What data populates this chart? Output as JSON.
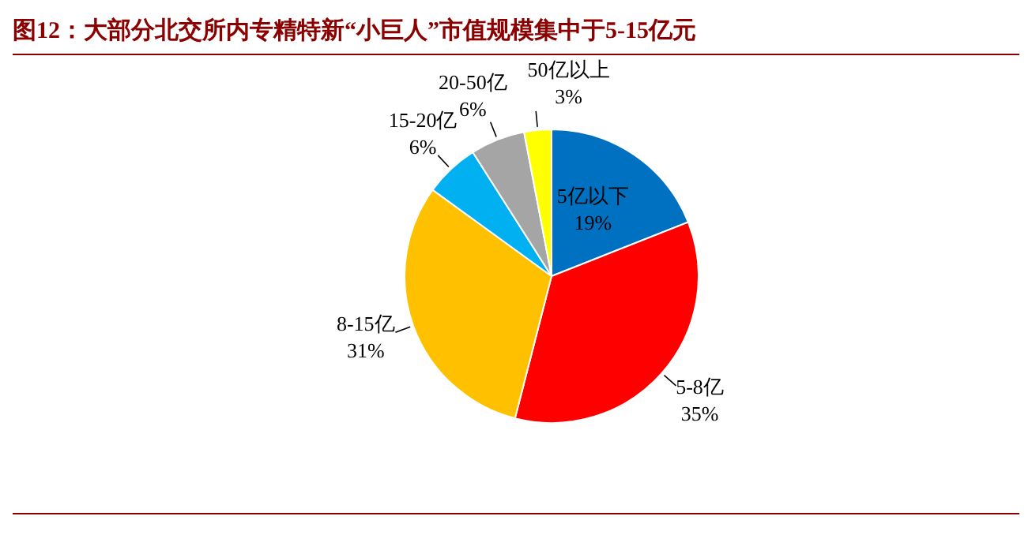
{
  "chart_data": {
    "type": "pie",
    "title": "图12：大部分北交所内专精特新“小巨人”市值规模集中于5-15亿元",
    "categories": [
      "5亿以下",
      "5-8亿",
      "8-15亿",
      "15-20亿",
      "20-50亿",
      "50亿以上"
    ],
    "values": [
      19,
      35,
      31,
      6,
      6,
      3
    ],
    "value_labels": [
      "19%",
      "35%",
      "31%",
      "6%",
      "6%",
      "3%"
    ],
    "colors": [
      "#0070c0",
      "#ff0000",
      "#ffc000",
      "#00b0f0",
      "#a5a5a5",
      "#ffff00"
    ],
    "legend": false
  }
}
